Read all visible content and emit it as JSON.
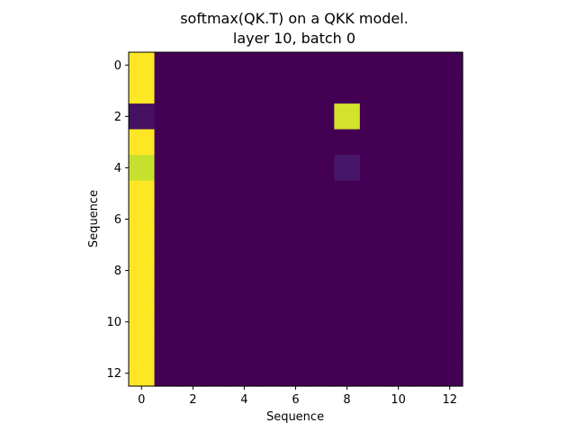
{
  "chart_data": {
    "type": "heatmap",
    "title_lines": [
      "softmax(QK.T) on a QKK model.",
      "layer 10, batch 0"
    ],
    "xlabel": "Sequence",
    "ylabel": "Sequence",
    "n_rows": 13,
    "n_cols": 13,
    "xticks": [
      0,
      2,
      4,
      6,
      8,
      10,
      12
    ],
    "yticks": [
      0,
      2,
      4,
      6,
      8,
      10,
      12
    ],
    "xlim": [
      -0.5,
      12.5
    ],
    "ylim": [
      12.5,
      -0.5
    ],
    "colormap": "viridis",
    "color_range": [
      0,
      1
    ],
    "grid": false,
    "values": [
      [
        1,
        0,
        0,
        0,
        0,
        0,
        0,
        0,
        0,
        0,
        0,
        0,
        0
      ],
      [
        1,
        0,
        0,
        0,
        0,
        0,
        0,
        0,
        0,
        0,
        0,
        0,
        0
      ],
      [
        0.06,
        0,
        0,
        0,
        0,
        0,
        0,
        0,
        0.94,
        0,
        0,
        0,
        0
      ],
      [
        1,
        0,
        0,
        0,
        0,
        0,
        0,
        0,
        0,
        0,
        0,
        0,
        0
      ],
      [
        0.92,
        0,
        0,
        0,
        0,
        0,
        0,
        0,
        0.08,
        0,
        0,
        0,
        0
      ],
      [
        1,
        0,
        0,
        0,
        0,
        0,
        0,
        0,
        0,
        0,
        0,
        0,
        0
      ],
      [
        1,
        0,
        0,
        0,
        0,
        0,
        0,
        0,
        0,
        0,
        0,
        0,
        0
      ],
      [
        1,
        0,
        0,
        0,
        0,
        0,
        0,
        0,
        0,
        0,
        0,
        0,
        0
      ],
      [
        1,
        0,
        0,
        0,
        0,
        0,
        0,
        0,
        0,
        0,
        0,
        0,
        0
      ],
      [
        1,
        0,
        0,
        0,
        0,
        0,
        0,
        0,
        0,
        0,
        0,
        0,
        0
      ],
      [
        1,
        0,
        0,
        0,
        0,
        0,
        0,
        0,
        0,
        0,
        0,
        0,
        0
      ],
      [
        1,
        0,
        0,
        0,
        0,
        0,
        0,
        0,
        0,
        0,
        0,
        0,
        0
      ],
      [
        1,
        0,
        0,
        0,
        0,
        0,
        0,
        0,
        0,
        0,
        0,
        0,
        0
      ]
    ]
  }
}
